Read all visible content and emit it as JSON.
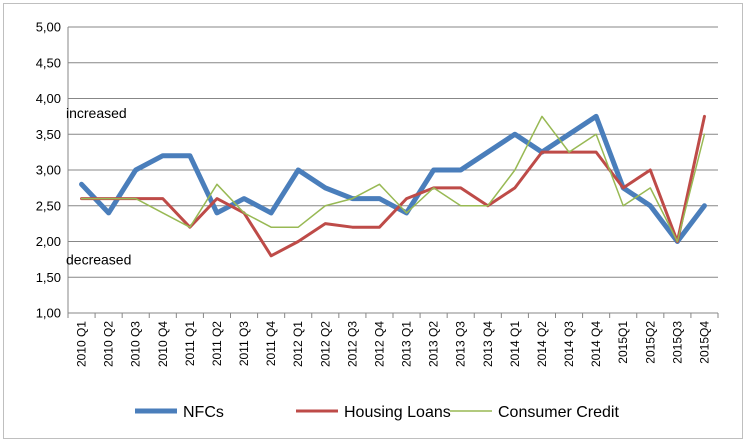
{
  "chart_data": {
    "type": "line",
    "title": "",
    "xlabel": "",
    "ylabel": "",
    "ylim": [
      1.0,
      5.0
    ],
    "ytick_step": 0.5,
    "grid": true,
    "legend_position": "bottom",
    "categories": [
      "2010 Q1",
      "2010 Q2",
      "2010 Q3",
      "2010 Q4",
      "2011 Q1",
      "2011 Q2",
      "2011 Q3",
      "2011 Q4",
      "2012 Q1",
      "2012 Q2",
      "2012 Q3",
      "2012 Q4",
      "2013 Q1",
      "2013 Q2",
      "2013 Q3",
      "2013 Q4",
      "2014 Q1",
      "2014 Q2",
      "2014 Q3",
      "2014 Q4",
      "2015Q1",
      "2015Q2",
      "2015Q3",
      "2015Q4"
    ],
    "yticks": [
      "1,00",
      "1,50",
      "2,00",
      "2,50",
      "3,00",
      "3,50",
      "4,00",
      "4,50",
      "5,00"
    ],
    "annotations": [
      {
        "text": "increased",
        "value": 3.8
      },
      {
        "text": "decreased",
        "value": 1.75
      }
    ],
    "series": [
      {
        "name": "NFCs",
        "color": "#4a7ebb",
        "values": [
          2.8,
          2.4,
          3.0,
          3.2,
          3.2,
          2.4,
          2.6,
          2.4,
          3.0,
          2.75,
          2.6,
          2.6,
          2.4,
          3.0,
          3.0,
          3.25,
          3.5,
          3.25,
          3.5,
          3.75,
          2.75,
          2.5,
          2.0,
          2.5
        ]
      },
      {
        "name": "Housing Loans",
        "color": "#be4b48",
        "values": [
          2.6,
          2.6,
          2.6,
          2.6,
          2.2,
          2.6,
          2.4,
          1.8,
          2.0,
          2.25,
          2.2,
          2.2,
          2.6,
          2.75,
          2.75,
          2.5,
          2.75,
          3.25,
          3.25,
          3.25,
          2.75,
          3.0,
          2.0,
          3.75
        ]
      },
      {
        "name": "Consumer Credit",
        "color": "#98b954",
        "values": [
          2.6,
          2.6,
          2.6,
          2.4,
          2.2,
          2.8,
          2.4,
          2.2,
          2.2,
          2.5,
          2.6,
          2.8,
          2.4,
          2.75,
          2.5,
          2.5,
          3.0,
          3.75,
          3.25,
          3.5,
          2.5,
          2.75,
          2.0,
          3.5
        ]
      }
    ]
  }
}
